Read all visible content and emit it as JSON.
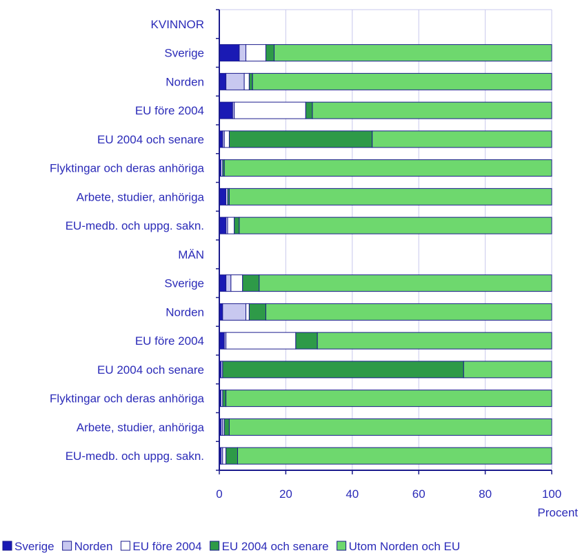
{
  "colors": {
    "text": "#2b2bb8",
    "axis": "#1a1a8c",
    "grid": "#c8c8ec",
    "outline": "#1a1a8c",
    "series": [
      "#1a1ab4",
      "#c8c8f0",
      "#ffffff",
      "#2e9a48",
      "#6ed86e"
    ]
  },
  "chart_data": {
    "type": "bar",
    "orientation": "horizontal",
    "stacked": true,
    "categories": [
      "KVINNOR",
      "Sverige",
      "Norden",
      "EU före 2004",
      "EU 2004 och senare",
      "Flyktingar och deras anhöriga",
      "Arbete, studier, anhöriga",
      "EU-medb. och uppg. sakn.",
      "MÄN",
      "Sverige",
      "Norden",
      "EU före 2004",
      "EU 2004 och senare",
      "Flyktingar och deras anhöriga",
      "Arbete, studier, anhöriga",
      "EU-medb. och uppg. sakn."
    ],
    "series": [
      {
        "name": "Sverige",
        "values": [
          null,
          6,
          2,
          4,
          1,
          0.5,
          2,
          2,
          null,
          2,
          1,
          1.5,
          0.5,
          0.5,
          0.5,
          0.5
        ]
      },
      {
        "name": "Norden",
        "values": [
          null,
          2,
          5.5,
          0.5,
          0.5,
          0,
          0,
          0.5,
          null,
          1.5,
          7,
          0.5,
          0.5,
          0,
          0.5,
          0.5
        ]
      },
      {
        "name": "EU före 2004",
        "values": [
          null,
          6,
          1.5,
          21.5,
          1.5,
          0.5,
          0.5,
          2,
          null,
          3.5,
          1,
          21,
          0,
          0.5,
          0.5,
          1
        ]
      },
      {
        "name": "EU 2004 och senare",
        "values": [
          null,
          2.5,
          1,
          2,
          43,
          0.5,
          0.5,
          1.5,
          null,
          5,
          5,
          6.5,
          72.5,
          1,
          1.5,
          3.5
        ]
      },
      {
        "name": "Utom Norden och EU",
        "values": [
          null,
          83.5,
          90,
          72,
          54,
          98.5,
          97,
          94,
          null,
          88,
          86,
          70.5,
          26.5,
          98,
          97,
          94.5
        ]
      }
    ],
    "x_ticks": [
      "0",
      "20",
      "40",
      "60",
      "80",
      "100"
    ],
    "xlim": [
      0,
      100
    ],
    "xlabel": "Procent",
    "legend_position": "bottom",
    "grid": true
  }
}
